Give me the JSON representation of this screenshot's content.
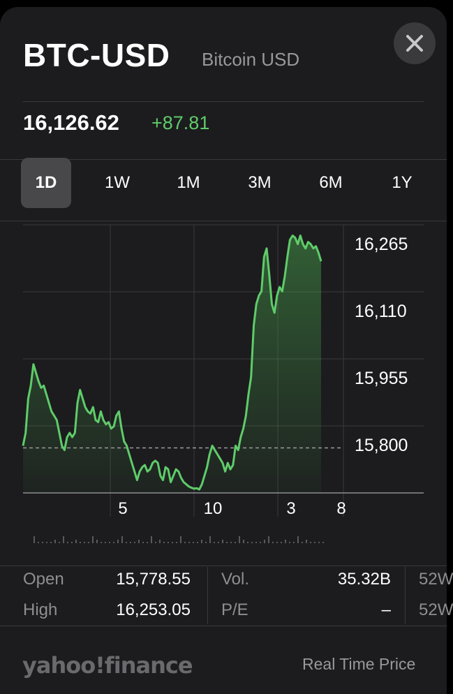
{
  "header": {
    "symbol": "BTC-USD",
    "name": "Bitcoin USD",
    "price": "16,126.62",
    "change": "+87.81",
    "close_icon": "close-icon"
  },
  "tabs": [
    {
      "label": "1D",
      "active": true
    },
    {
      "label": "1W",
      "active": false
    },
    {
      "label": "1M",
      "active": false
    },
    {
      "label": "3M",
      "active": false
    },
    {
      "label": "6M",
      "active": false
    },
    {
      "label": "1Y",
      "active": false
    }
  ],
  "chart_data": {
    "type": "area",
    "y_ticks": [
      "16,265",
      "16,110",
      "15,955",
      "15,800"
    ],
    "x_ticks": [
      "5",
      "10",
      "3",
      "8"
    ],
    "previous_close": 15795,
    "ylim": [
      15690,
      16315
    ],
    "line_color": "#5fcc6a",
    "values": [
      15800,
      15830,
      15910,
      15940,
      15990,
      15970,
      15950,
      15935,
      15940,
      15920,
      15900,
      15880,
      15870,
      15860,
      15830,
      15800,
      15790,
      15820,
      15830,
      15820,
      15830,
      15900,
      15930,
      15910,
      15890,
      15880,
      15875,
      15890,
      15860,
      15855,
      15880,
      15860,
      15850,
      15855,
      15840,
      15845,
      15870,
      15880,
      15840,
      15810,
      15800,
      15780,
      15760,
      15740,
      15720,
      15740,
      15750,
      15755,
      15740,
      15745,
      15760,
      15765,
      15760,
      15730,
      15720,
      15750,
      15745,
      15715,
      15730,
      15745,
      15740,
      15725,
      15715,
      15710,
      15705,
      15702,
      15700,
      15701,
      15698,
      15710,
      15730,
      15750,
      15780,
      15800,
      15790,
      15780,
      15770,
      15760,
      15740,
      15760,
      15745,
      15755,
      15800,
      15790,
      15820,
      15840,
      15870,
      15920,
      15960,
      16080,
      16130,
      16150,
      16160,
      16240,
      16260,
      16200,
      16130,
      16110,
      16150,
      16170,
      16160,
      16195,
      16240,
      16280,
      16290,
      16285,
      16270,
      16290,
      16270,
      16260,
      16275,
      16270,
      16260,
      16265,
      16250,
      16230
    ]
  },
  "stats": {
    "col1": [
      {
        "label": "Open",
        "value": "15,778.55"
      },
      {
        "label": "High",
        "value": "16,253.05"
      }
    ],
    "col2": [
      {
        "label": "Vol.",
        "value": "35.32B"
      },
      {
        "label": "P/E",
        "value": "–"
      }
    ],
    "col3": [
      {
        "label": "52W"
      },
      {
        "label": "52W"
      }
    ]
  },
  "footer": {
    "logo": "yahoo!finance",
    "note": "Real Time Price"
  }
}
